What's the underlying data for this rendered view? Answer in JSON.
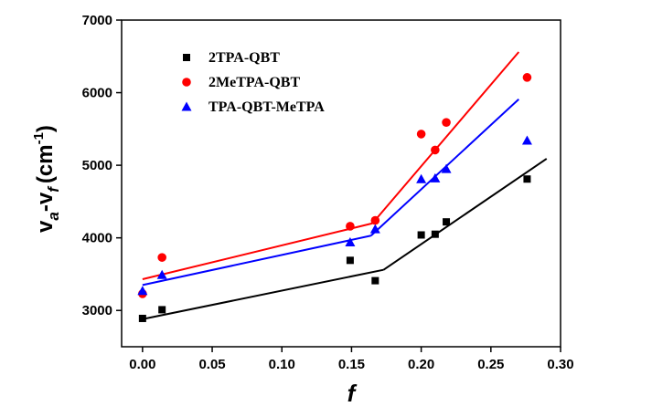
{
  "chart_data": {
    "type": "scatter",
    "title": "",
    "xlabel": "f",
    "ylabel": {
      "v1": "v",
      "sa": "a",
      "dash": "-v",
      "sf": "f",
      "open": "(cm",
      "sup": "-1",
      "close": ")"
    },
    "xlim": [
      -0.015,
      0.3
    ],
    "ylim": [
      2500,
      7000
    ],
    "xticks": [
      "0.00",
      "0.05",
      "0.10",
      "0.15",
      "0.20",
      "0.25",
      "0.30"
    ],
    "xtick_values": [
      0.0,
      0.05,
      0.1,
      0.15,
      0.2,
      0.25,
      0.3
    ],
    "yticks": [
      "3000",
      "4000",
      "5000",
      "6000",
      "7000"
    ],
    "ytick_values": [
      3000,
      4000,
      5000,
      6000,
      7000
    ],
    "grid": false,
    "legend_position": "top-left",
    "series": [
      {
        "name": "2TPA-QBT",
        "color": "#000000",
        "marker": "square",
        "x": [
          0.0,
          0.014,
          0.149,
          0.167,
          0.2,
          0.21,
          0.218,
          0.276
        ],
        "y": [
          2890,
          3010,
          3690,
          3410,
          4040,
          4050,
          4220,
          4810
        ],
        "fit_segments": [
          {
            "x": [
              0.0,
              0.173
            ],
            "y": [
              2880,
              3560
            ]
          },
          {
            "x": [
              0.173,
              0.29
            ],
            "y": [
              3560,
              5090
            ]
          }
        ]
      },
      {
        "name": "2MeTPA-QBT",
        "color": "#ff0000",
        "marker": "circle",
        "x": [
          0.0,
          0.014,
          0.149,
          0.167,
          0.2,
          0.21,
          0.218,
          0.276
        ],
        "y": [
          3230,
          3730,
          4160,
          4240,
          5430,
          5210,
          5590,
          6210
        ],
        "fit_segments": [
          {
            "x": [
              0.0,
              0.165
            ],
            "y": [
              3430,
              4200
            ]
          },
          {
            "x": [
              0.165,
              0.27
            ],
            "y": [
              4200,
              6560
            ]
          }
        ]
      },
      {
        "name": "TPA-QBT-MeTPA",
        "color": "#0000ff",
        "marker": "triangle",
        "x": [
          0.0,
          0.014,
          0.149,
          0.167,
          0.2,
          0.21,
          0.218,
          0.276
        ],
        "y": [
          3270,
          3490,
          3940,
          4120,
          4810,
          4820,
          4950,
          5340
        ],
        "fit_segments": [
          {
            "x": [
              0.0,
              0.164
            ],
            "y": [
              3350,
              4030
            ]
          },
          {
            "x": [
              0.164,
              0.27
            ],
            "y": [
              4030,
              5910
            ]
          }
        ]
      }
    ]
  }
}
